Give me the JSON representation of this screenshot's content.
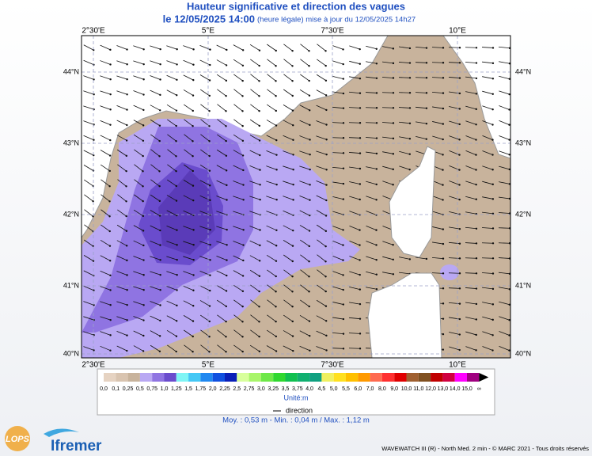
{
  "header": {
    "title": "Hauteur significative et direction des vagues",
    "date": "le 12/05/2025 14:00",
    "update": "(heure légale) mise à jour du 12/05/2025 14h27"
  },
  "map": {
    "lon_labels": [
      "2°30'E",
      "5°E",
      "7°30'E",
      "10°E"
    ],
    "lat_labels": [
      "44°N",
      "43°N",
      "42°N",
      "41°N",
      "40°N"
    ]
  },
  "scale": {
    "labels": [
      "0,0",
      "0,1",
      "0,25",
      "0,5",
      "0,75",
      "1,0",
      "1,25",
      "1,5",
      "1,75",
      "2,0",
      "2,25",
      "2,5",
      "2,75",
      "3,0",
      "3,25",
      "3,5",
      "3,75",
      "4,0",
      "4,5",
      "5,0",
      "5,5",
      "6,0",
      "7,0",
      "8,0",
      "9,0",
      "10,0",
      "11,0",
      "12,0",
      "13,0",
      "14,0",
      "15,0",
      "∞"
    ],
    "colors": [
      "#e6d3c2",
      "#d9c4b0",
      "#c8b39c",
      "#b9a8f3",
      "#8f74e2",
      "#6a4ccd",
      "#7ff5f5",
      "#45c8f5",
      "#2088f0",
      "#1050e0",
      "#0a20b8",
      "#d8ff9c",
      "#a8f56a",
      "#6ee848",
      "#2fd82f",
      "#10c050",
      "#10b070",
      "#10a080",
      "#f0f060",
      "#ffe020",
      "#ffc000",
      "#ff9a00",
      "#ff6a50",
      "#ff3030",
      "#e00000",
      "#a06030",
      "#805020",
      "#c00000",
      "#d00040",
      "#ff00ff",
      "#a00080"
    ],
    "unit": "Unité:m",
    "direction": "direction"
  },
  "stats": "Moy. : 0,53 m   -   Min. : 0,04 m / Max. : 1,12 m",
  "footer": {
    "lops": "LOPS",
    "ifremer": "Ifremer",
    "credit": "WAVEWATCH III (R) - North Med. 2 min - © MARC 2021 - Tous droits réservés"
  }
}
